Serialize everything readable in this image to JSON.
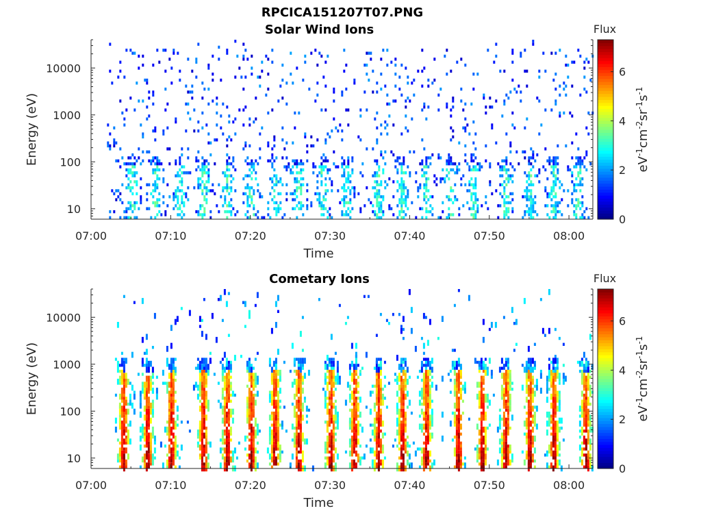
{
  "page_title": "RPCICA151207T07.PNG",
  "colors": {
    "colormap": [
      "#00007f",
      "#0000ff",
      "#007fff",
      "#00ffff",
      "#7fff7f",
      "#ffff00",
      "#ff7f00",
      "#ff0000",
      "#7f0000"
    ],
    "axes": "#262626",
    "background": "#ffffff"
  },
  "chart_data": [
    {
      "type": "heatmap",
      "title": "Solar Wind Ions",
      "xlabel": "Time",
      "ylabel": "Energy (eV)",
      "x_ticks": [
        "07:00",
        "07:10",
        "07:20",
        "07:30",
        "07:40",
        "07:50",
        "08:00"
      ],
      "x_range": [
        "07:00",
        "08:03"
      ],
      "y_scale": "log",
      "y_ticks": [
        10,
        100,
        1000,
        10000
      ],
      "y_tick_labels": [
        "10",
        "100",
        "1000",
        "10000"
      ],
      "y_range": [
        6,
        40000
      ],
      "colorbar": {
        "title": "Flux",
        "label": "eV-1cm-2sr-1s-1",
        "ticks": [
          0,
          2,
          4,
          6
        ],
        "range": [
          0,
          7.3
        ]
      },
      "data_start": "07:02",
      "pattern": "sparse scatter",
      "sweep_times": [
        "07:05",
        "07:08",
        "07:11",
        "07:14",
        "07:17",
        "07:20",
        "07:23",
        "07:26",
        "07:29",
        "07:32",
        "07:36",
        "07:39",
        "07:42",
        "07:45",
        "07:48",
        "07:52",
        "07:55",
        "07:58",
        "08:01"
      ]
    },
    {
      "type": "heatmap",
      "title": "Cometary Ions",
      "xlabel": "Time",
      "ylabel": "Energy (eV)",
      "x_ticks": [
        "07:00",
        "07:10",
        "07:20",
        "07:30",
        "07:40",
        "07:50",
        "08:00"
      ],
      "x_range": [
        "07:00",
        "08:03"
      ],
      "y_scale": "log",
      "y_ticks": [
        10,
        100,
        1000,
        10000
      ],
      "y_tick_labels": [
        "10",
        "100",
        "1000",
        "10000"
      ],
      "y_range": [
        6,
        40000
      ],
      "colorbar": {
        "title": "Flux",
        "label": "eV-1cm-2sr-1s-1",
        "ticks": [
          0,
          2,
          4,
          6
        ],
        "range": [
          0,
          7.3
        ]
      },
      "data_start": "07:03",
      "pattern": "periodic bursts",
      "peak_flux_low_energy": 6,
      "burst_times": [
        "07:04",
        "07:07",
        "07:10",
        "07:14",
        "07:17",
        "07:20",
        "07:23",
        "07:26",
        "07:30",
        "07:33",
        "07:36",
        "07:39",
        "07:42",
        "07:46",
        "07:49",
        "07:52",
        "07:55",
        "07:58",
        "08:02"
      ]
    }
  ]
}
